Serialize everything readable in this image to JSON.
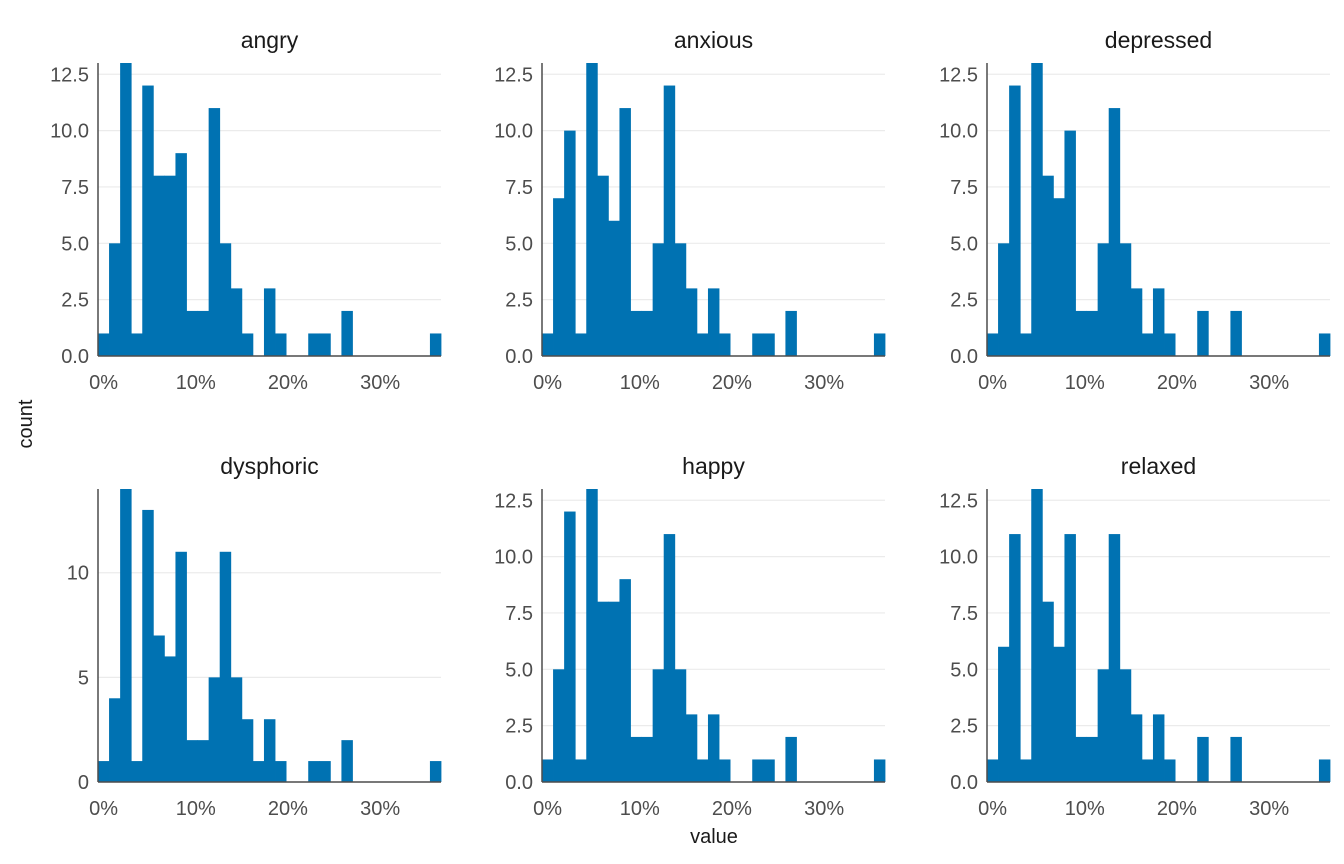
{
  "chart_data": {
    "type": "bar",
    "xlabel": "value",
    "ylabel": "count",
    "bar_color": "#0072B2",
    "grid_color": "#EBEBEB",
    "axis_color": "#4D4D4D",
    "x_tick_values": [
      0,
      0.1,
      0.2,
      0.3
    ],
    "x_tick_labels": [
      "0%",
      "10%",
      "20%",
      "30%"
    ],
    "bin_width": 0.012,
    "bin_start": -0.006,
    "xlim": [
      -0.006,
      0.366
    ],
    "panels": [
      {
        "title": "angry",
        "ylim": [
          0,
          13
        ],
        "y_ticks": [
          "0.0",
          "2.5",
          "5.0",
          "7.5",
          "10.0",
          "12.5"
        ],
        "y_tick_values": [
          0,
          2.5,
          5,
          7.5,
          10,
          12.5
        ],
        "counts": [
          1,
          5,
          13,
          1,
          12,
          8,
          8,
          9,
          2,
          2,
          11,
          5,
          3,
          1,
          0,
          3,
          1,
          0,
          0,
          1,
          1,
          0,
          2,
          0,
          0,
          0,
          0,
          0,
          0,
          0,
          1
        ]
      },
      {
        "title": "anxious",
        "ylim": [
          0,
          13
        ],
        "y_ticks": [
          "0.0",
          "2.5",
          "5.0",
          "7.5",
          "10.0",
          "12.5"
        ],
        "y_tick_values": [
          0,
          2.5,
          5,
          7.5,
          10,
          12.5
        ],
        "counts": [
          1,
          7,
          10,
          1,
          13,
          8,
          6,
          11,
          2,
          2,
          5,
          12,
          5,
          3,
          1,
          3,
          1,
          0,
          0,
          1,
          1,
          0,
          2,
          0,
          0,
          0,
          0,
          0,
          0,
          0,
          1
        ]
      },
      {
        "title": "depressed",
        "ylim": [
          0,
          13
        ],
        "y_ticks": [
          "0.0",
          "2.5",
          "5.0",
          "7.5",
          "10.0",
          "12.5"
        ],
        "y_tick_values": [
          0,
          2.5,
          5,
          7.5,
          10,
          12.5
        ],
        "counts": [
          1,
          5,
          12,
          1,
          13,
          8,
          7,
          10,
          2,
          2,
          5,
          11,
          5,
          3,
          1,
          3,
          1,
          0,
          0,
          2,
          0,
          0,
          2,
          0,
          0,
          0,
          0,
          0,
          0,
          0,
          1
        ]
      },
      {
        "title": "dysphoric",
        "ylim": [
          0,
          14
        ],
        "y_ticks": [
          "0",
          "5",
          "10"
        ],
        "y_tick_values": [
          0,
          5,
          10
        ],
        "counts": [
          1,
          4,
          14,
          1,
          13,
          7,
          6,
          11,
          2,
          2,
          5,
          11,
          5,
          3,
          1,
          3,
          1,
          0,
          0,
          1,
          1,
          0,
          2,
          0,
          0,
          0,
          0,
          0,
          0,
          0,
          1
        ]
      },
      {
        "title": "happy",
        "ylim": [
          0,
          13
        ],
        "y_ticks": [
          "0.0",
          "2.5",
          "5.0",
          "7.5",
          "10.0",
          "12.5"
        ],
        "y_tick_values": [
          0,
          2.5,
          5,
          7.5,
          10,
          12.5
        ],
        "counts": [
          1,
          5,
          12,
          1,
          13,
          8,
          8,
          9,
          2,
          2,
          5,
          11,
          5,
          3,
          1,
          3,
          1,
          0,
          0,
          1,
          1,
          0,
          2,
          0,
          0,
          0,
          0,
          0,
          0,
          0,
          1
        ]
      },
      {
        "title": "relaxed",
        "ylim": [
          0,
          13
        ],
        "y_ticks": [
          "0.0",
          "2.5",
          "5.0",
          "7.5",
          "10.0",
          "12.5"
        ],
        "y_tick_values": [
          0,
          2.5,
          5,
          7.5,
          10,
          12.5
        ],
        "counts": [
          1,
          6,
          11,
          1,
          13,
          8,
          6,
          11,
          2,
          2,
          5,
          11,
          5,
          3,
          1,
          3,
          1,
          0,
          0,
          2,
          0,
          0,
          2,
          0,
          0,
          0,
          0,
          0,
          0,
          0,
          1
        ]
      }
    ]
  }
}
